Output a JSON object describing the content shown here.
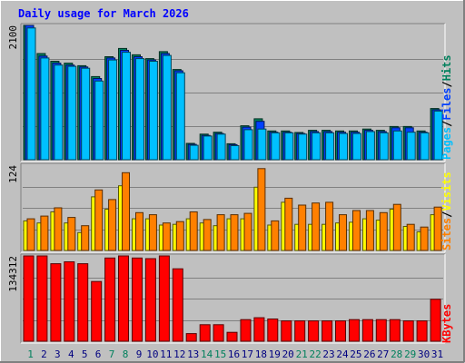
{
  "title": "Daily usage for March 2026",
  "colors": {
    "background": "#c0c0c0",
    "hits": "#00805c",
    "files": "#0040ff",
    "pages": "#00c0ff",
    "visits": "#ffff00",
    "sites": "#ff8000",
    "kbytes": "#ff0000",
    "title": "#0000ff",
    "weekend_label": "#00805c",
    "weekday_label": "#000080"
  },
  "right_labels": {
    "top": [
      "Pages",
      "Files",
      "Hits"
    ],
    "middle": [
      "Sites",
      "Visits"
    ],
    "bottom": [
      "KBytes"
    ],
    "separator": "/"
  },
  "chart_data": [
    {
      "type": "bar",
      "name": "hits-files-pages",
      "ytick": "2100",
      "ylim": [
        0,
        2100
      ],
      "categories": [
        "1",
        "2",
        "3",
        "4",
        "5",
        "6",
        "7",
        "8",
        "9",
        "10",
        "11",
        "12",
        "13",
        "14",
        "15",
        "16",
        "17",
        "18",
        "19",
        "20",
        "21",
        "22",
        "23",
        "24",
        "25",
        "26",
        "27",
        "28",
        "29",
        "30",
        "31"
      ],
      "weekend_days": [
        "1",
        "7",
        "8",
        "14",
        "15",
        "21",
        "22",
        "28",
        "29"
      ],
      "series": [
        {
          "name": "Hits",
          "values": [
            2140,
            1660,
            1540,
            1510,
            1470,
            1300,
            1610,
            1740,
            1640,
            1580,
            1690,
            1410,
            255,
            400,
            430,
            250,
            530,
            640,
            450,
            450,
            425,
            460,
            460,
            450,
            450,
            480,
            460,
            520,
            520,
            450,
            800
          ]
        },
        {
          "name": "Files",
          "values": [
            2100,
            1620,
            1510,
            1480,
            1450,
            1270,
            1590,
            1710,
            1610,
            1560,
            1660,
            1390,
            240,
            380,
            410,
            235,
            510,
            600,
            430,
            430,
            410,
            440,
            440,
            430,
            430,
            460,
            440,
            500,
            500,
            430,
            780
          ]
        },
        {
          "name": "Pages",
          "values": [
            2060,
            1590,
            1480,
            1460,
            1430,
            1230,
            1560,
            1680,
            1580,
            1540,
            1630,
            1360,
            225,
            370,
            400,
            220,
            470,
            480,
            420,
            420,
            400,
            420,
            420,
            410,
            410,
            440,
            420,
            450,
            430,
            420,
            760
          ]
        }
      ]
    },
    {
      "type": "bar",
      "name": "visits-sites",
      "ytick": "124",
      "ylim": [
        0,
        124
      ],
      "categories": [
        "1",
        "2",
        "3",
        "4",
        "5",
        "6",
        "7",
        "8",
        "9",
        "10",
        "11",
        "12",
        "13",
        "14",
        "15",
        "16",
        "17",
        "18",
        "19",
        "20",
        "21",
        "22",
        "23",
        "24",
        "25",
        "26",
        "27",
        "28",
        "29",
        "30",
        "31"
      ],
      "series": [
        {
          "name": "Visits",
          "values": [
            43,
            40,
            56,
            40,
            26,
            78,
            60,
            94,
            46,
            46,
            37,
            38,
            46,
            40,
            36,
            46,
            46,
            92,
            37,
            70,
            38,
            38,
            38,
            40,
            41,
            46,
            44,
            60,
            35,
            27,
            52
          ]
        },
        {
          "name": "Sites",
          "values": [
            46,
            50,
            62,
            48,
            36,
            88,
            74,
            113,
            55,
            52,
            40,
            42,
            56,
            45,
            52,
            52,
            54,
            119,
            43,
            76,
            66,
            69,
            70,
            52,
            58,
            58,
            55,
            67,
            38,
            34,
            63
          ]
        }
      ]
    },
    {
      "type": "bar",
      "name": "kbytes",
      "ytick": "134312",
      "ylim": [
        0,
        134312
      ],
      "categories": [
        "1",
        "2",
        "3",
        "4",
        "5",
        "6",
        "7",
        "8",
        "9",
        "10",
        "11",
        "12",
        "13",
        "14",
        "15",
        "16",
        "17",
        "18",
        "19",
        "20",
        "21",
        "22",
        "23",
        "24",
        "25",
        "26",
        "27",
        "28",
        "29",
        "30",
        "31"
      ],
      "series": [
        {
          "name": "KBytes",
          "values": [
            134312,
            134312,
            122000,
            125000,
            122000,
            94000,
            131000,
            137000,
            131000,
            130000,
            136000,
            114000,
            12000,
            26000,
            26000,
            14000,
            34000,
            37000,
            35000,
            32000,
            32000,
            32000,
            32000,
            32000,
            34000,
            34000,
            34000,
            34000,
            32000,
            32000,
            66000
          ]
        }
      ]
    }
  ]
}
